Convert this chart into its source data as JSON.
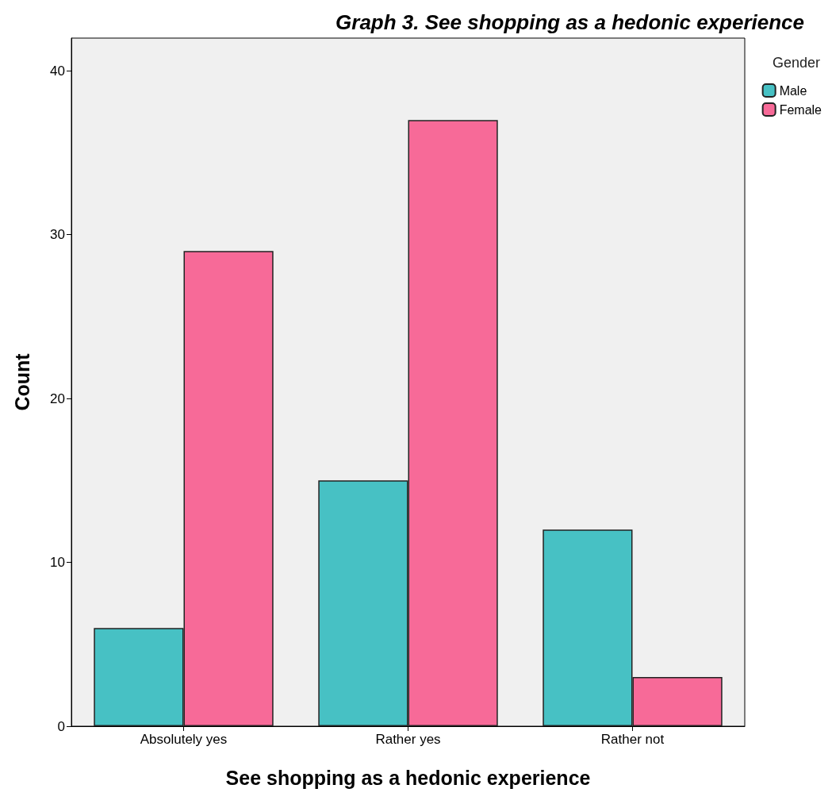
{
  "chart_data": {
    "type": "bar",
    "title": "Graph 3. See shopping as a hedonic experience",
    "xlabel": "See shopping as a hedonic experience",
    "ylabel": "Count",
    "legend_title": "Gender",
    "categories": [
      "Absolutely yes",
      "Rather yes",
      "Rather not"
    ],
    "series": [
      {
        "name": "Male",
        "color": "#47c1c4",
        "values": [
          6,
          15,
          12
        ]
      },
      {
        "name": "Female",
        "color": "#f76a98",
        "values": [
          29,
          37,
          3
        ]
      }
    ],
    "ylim": [
      0,
      42
    ],
    "yticks": [
      0,
      10,
      20,
      30,
      40
    ],
    "grid": false,
    "legend": "top right"
  }
}
